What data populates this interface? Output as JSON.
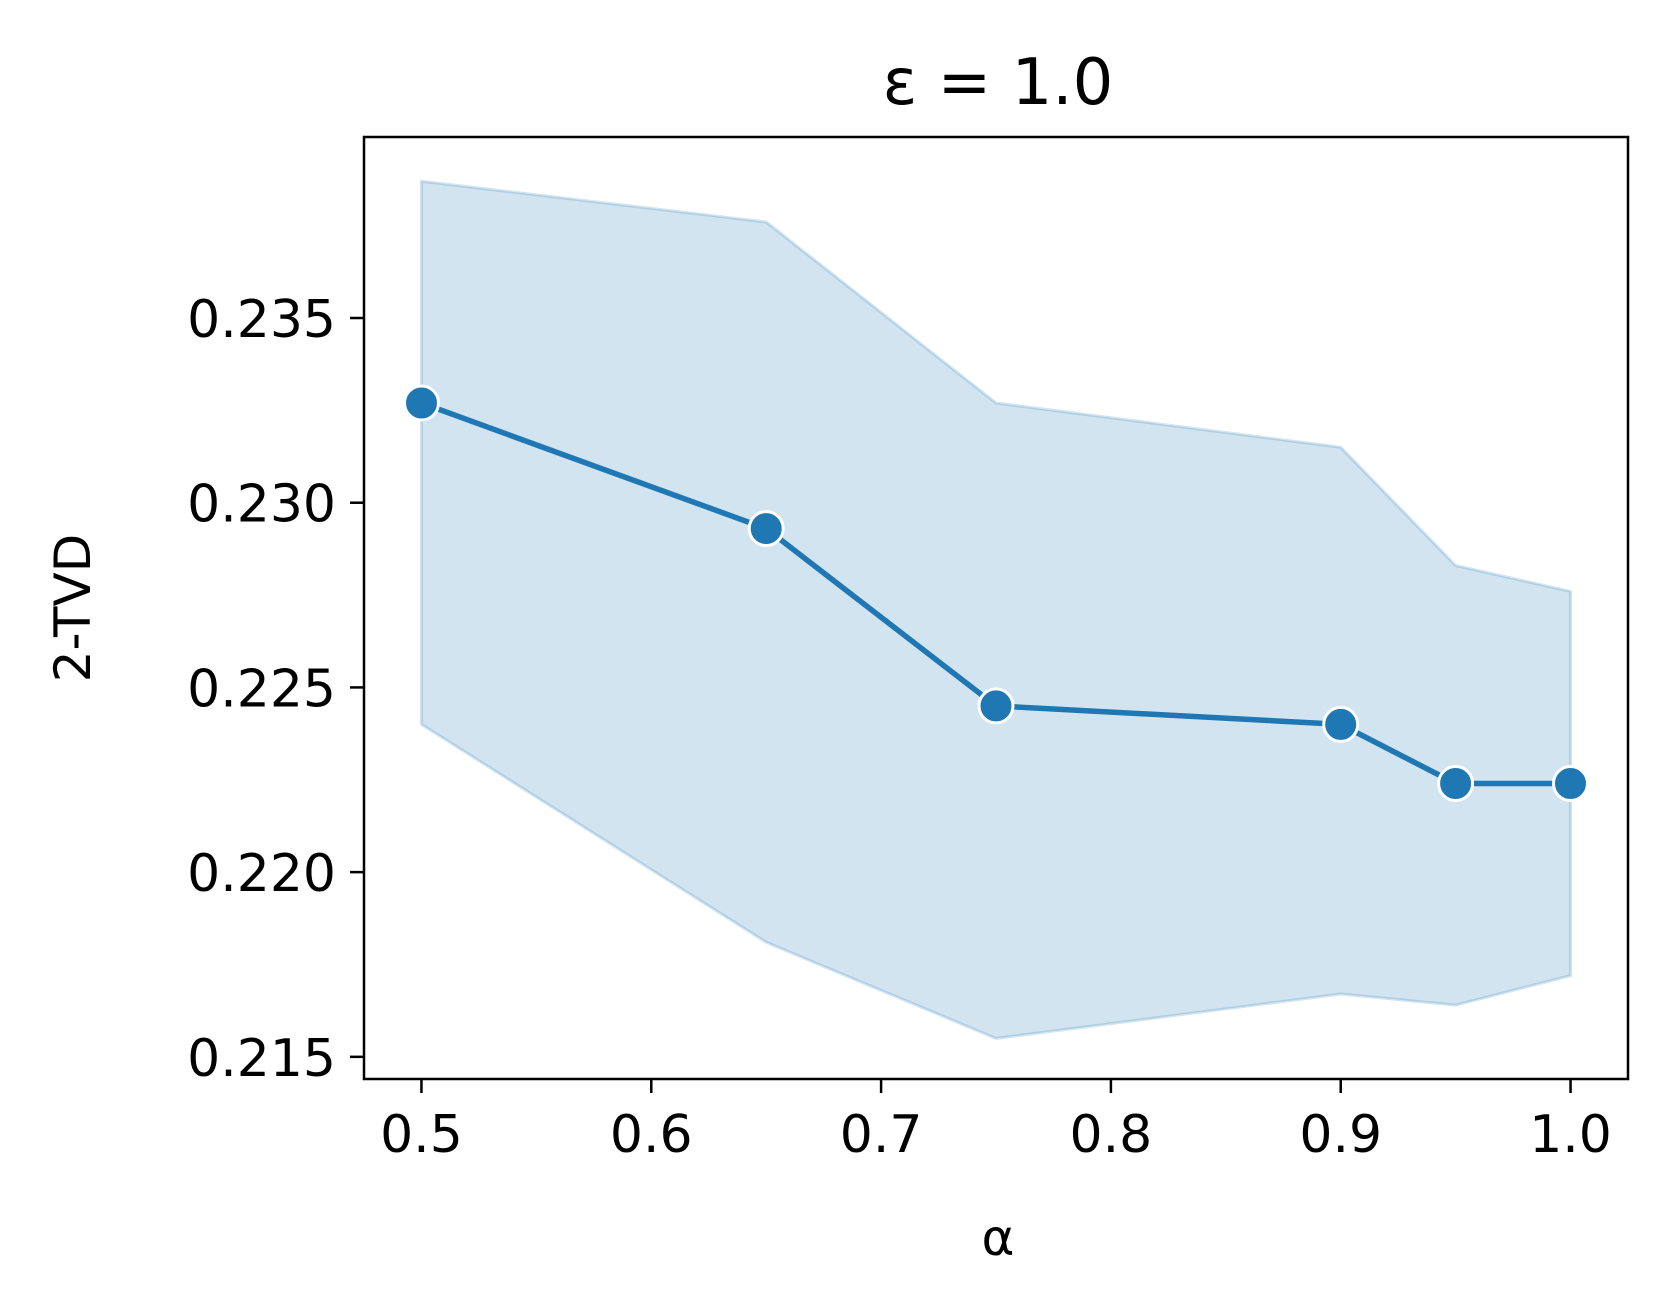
{
  "chart_data": {
    "type": "line",
    "title": "ε = 1.0",
    "xlabel": "α",
    "ylabel": "2-TVD",
    "xlim": [
      0.475,
      1.025
    ],
    "ylim": [
      0.2144,
      0.2399
    ],
    "x_ticks": [
      0.5,
      0.6,
      0.7,
      0.8,
      0.9,
      1.0
    ],
    "x_tick_labels": [
      "0.5",
      "0.6",
      "0.7",
      "0.8",
      "0.9",
      "1.0"
    ],
    "y_ticks": [
      0.215,
      0.22,
      0.225,
      0.23,
      0.235
    ],
    "y_tick_labels": [
      "0.215",
      "0.220",
      "0.225",
      "0.230",
      "0.235"
    ],
    "grid": false,
    "series": [
      {
        "x": [
          0.5,
          0.65,
          0.75,
          0.9,
          0.95,
          1.0
        ],
        "y": [
          0.2327,
          0.2293,
          0.2245,
          0.224,
          0.2224,
          0.2224
        ],
        "band_upper": [
          0.2387,
          0.2376,
          0.2327,
          0.2315,
          0.2283,
          0.2276
        ],
        "band_lower": [
          0.224,
          0.2181,
          0.2155,
          0.2167,
          0.2164,
          0.2172
        ],
        "color": "#1f77b4",
        "band_color": "#1f77b4"
      }
    ]
  }
}
